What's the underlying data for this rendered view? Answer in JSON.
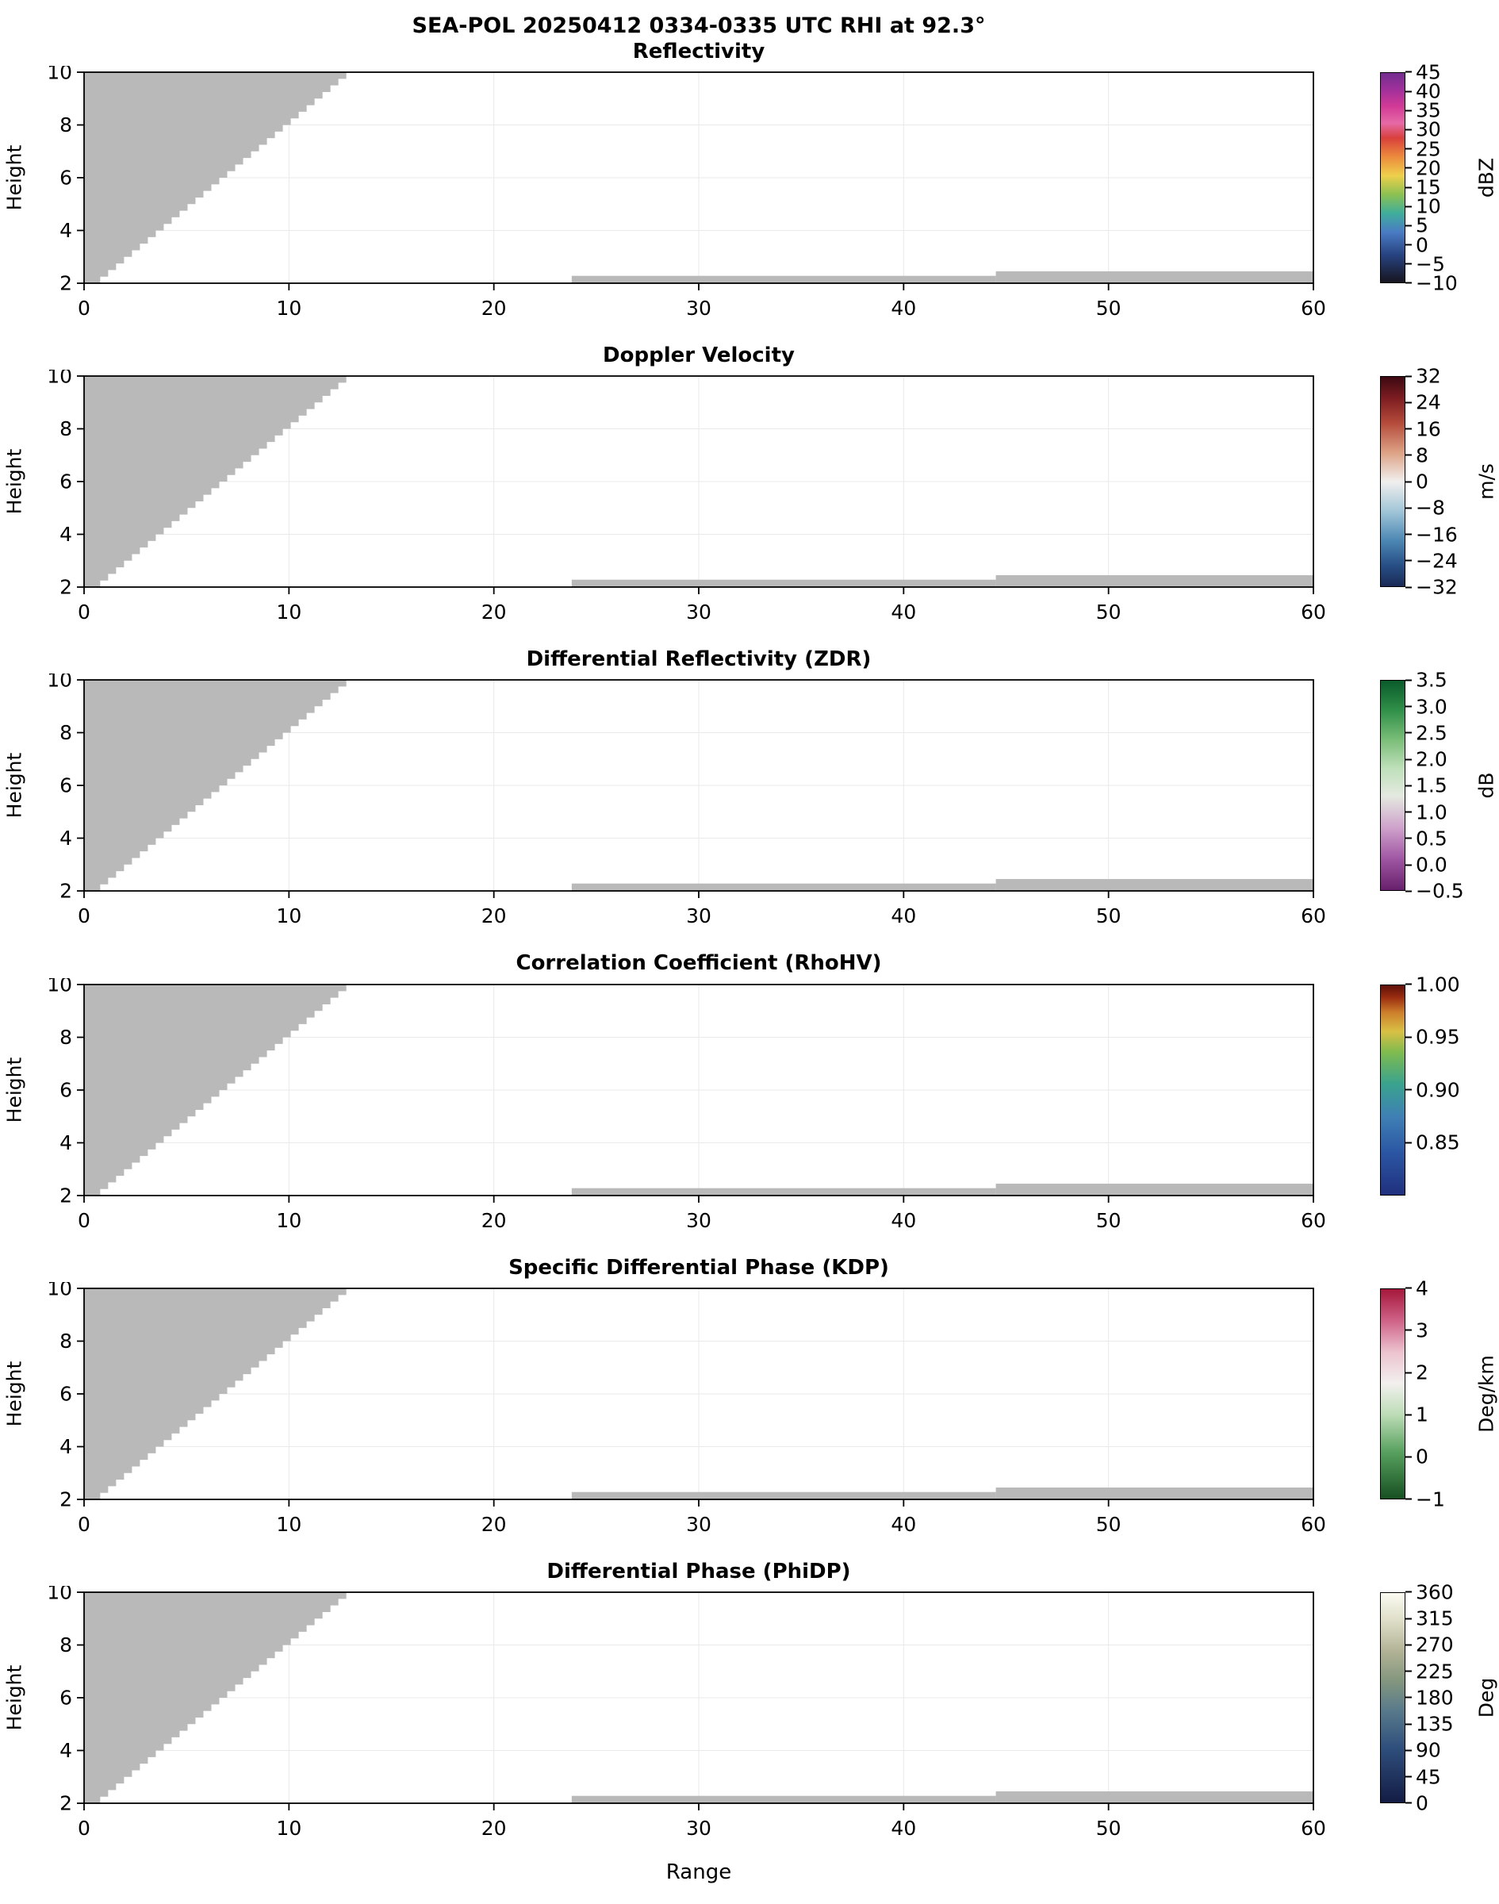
{
  "chart_data": {
    "type": "heatmap",
    "suptitle": "SEA-POL 20250412 0334-0335 UTC RHI at 92.3°",
    "xlabel": "Range",
    "ylabel": "Height",
    "xlim": [
      0,
      60
    ],
    "ylim": [
      2,
      10
    ],
    "xticks": [
      0,
      10,
      20,
      30,
      40,
      50,
      60
    ],
    "yticks": [
      2,
      4,
      6,
      8,
      10
    ],
    "grid": true,
    "nodata_color": "#b9b9b9",
    "blocked_wedge": {
      "x_top": 12.8,
      "y_top": 10,
      "x_bottom": 0.4,
      "y_bottom": 2,
      "step": 0.25
    },
    "ground_strips": [
      {
        "x0": 23.8,
        "x1": 44.5,
        "y0": 2.0,
        "y1": 2.28
      },
      {
        "x0": 44.5,
        "x1": 60.0,
        "y0": 2.0,
        "y1": 2.45
      }
    ],
    "panels": [
      {
        "id": "reflectivity",
        "title": "Reflectivity",
        "cbar_unit": "dBZ",
        "cbar_min": -10,
        "cbar_max": 45,
        "cbar_ticks": [
          {
            "v": 45,
            "label": "45"
          },
          {
            "v": 40,
            "label": "40"
          },
          {
            "v": 35,
            "label": "35"
          },
          {
            "v": 30,
            "label": "30"
          },
          {
            "v": 25,
            "label": "25"
          },
          {
            "v": 20,
            "label": "20"
          },
          {
            "v": 15,
            "label": "15"
          },
          {
            "v": 10,
            "label": "10"
          },
          {
            "v": 5,
            "label": "5"
          },
          {
            "v": 0,
            "label": "0"
          },
          {
            "v": -5,
            "label": "−5"
          },
          {
            "v": -10,
            "label": "−10"
          }
        ],
        "cbar_gradient": [
          [
            0.0,
            "#722d8e"
          ],
          [
            0.08,
            "#a1309b"
          ],
          [
            0.16,
            "#d23a96"
          ],
          [
            0.24,
            "#e66aa6"
          ],
          [
            0.31,
            "#d8403c"
          ],
          [
            0.4,
            "#ec8b3d"
          ],
          [
            0.49,
            "#eed04b"
          ],
          [
            0.58,
            "#8cc152"
          ],
          [
            0.67,
            "#3fae9b"
          ],
          [
            0.76,
            "#4a7bc4"
          ],
          [
            0.87,
            "#27427f"
          ],
          [
            1.0,
            "#17151f"
          ]
        ]
      },
      {
        "id": "velocity",
        "title": "Doppler Velocity",
        "cbar_unit": "m/s",
        "cbar_min": -32,
        "cbar_max": 32,
        "cbar_ticks": [
          {
            "v": 32,
            "label": "32"
          },
          {
            "v": 24,
            "label": "24"
          },
          {
            "v": 16,
            "label": "16"
          },
          {
            "v": 8,
            "label": "8"
          },
          {
            "v": 0,
            "label": "0"
          },
          {
            "v": -8,
            "label": "−8"
          },
          {
            "v": -16,
            "label": "−16"
          },
          {
            "v": -24,
            "label": "−24"
          },
          {
            "v": -32,
            "label": "−32"
          }
        ],
        "cbar_gradient": [
          [
            0.0,
            "#3c0912"
          ],
          [
            0.1,
            "#7c1c21"
          ],
          [
            0.22,
            "#b44b3a"
          ],
          [
            0.36,
            "#dda184"
          ],
          [
            0.5,
            "#f1efee"
          ],
          [
            0.64,
            "#a2c6d8"
          ],
          [
            0.78,
            "#4d88b4"
          ],
          [
            0.9,
            "#274f86"
          ],
          [
            1.0,
            "#1b2a55"
          ]
        ]
      },
      {
        "id": "zdr",
        "title": "Differential Reflectivity (ZDR)",
        "cbar_unit": "dB",
        "cbar_min": -0.5,
        "cbar_max": 3.5,
        "cbar_ticks": [
          {
            "v": 3.5,
            "label": "3.5"
          },
          {
            "v": 3.0,
            "label": "3.0"
          },
          {
            "v": 2.5,
            "label": "2.5"
          },
          {
            "v": 2.0,
            "label": "2.0"
          },
          {
            "v": 1.5,
            "label": "1.5"
          },
          {
            "v": 1.0,
            "label": "1.0"
          },
          {
            "v": 0.5,
            "label": "0.5"
          },
          {
            "v": 0.0,
            "label": "0.0"
          },
          {
            "v": -0.5,
            "label": "−0.5"
          }
        ],
        "cbar_gradient": [
          [
            0.0,
            "#0b5b2b"
          ],
          [
            0.14,
            "#2f8f48"
          ],
          [
            0.28,
            "#79bd77"
          ],
          [
            0.42,
            "#bfe0bb"
          ],
          [
            0.55,
            "#e4e9e0"
          ],
          [
            0.7,
            "#cfa3cc"
          ],
          [
            0.85,
            "#a057a3"
          ],
          [
            1.0,
            "#67206b"
          ]
        ]
      },
      {
        "id": "rhohv",
        "title": "Correlation Coefficient (RhoHV)",
        "cbar_unit": "",
        "cbar_min": 0.8,
        "cbar_max": 1.0,
        "cbar_ticks": [
          {
            "v": 1.0,
            "label": "1.00"
          },
          {
            "v": 0.95,
            "label": "0.95"
          },
          {
            "v": 0.9,
            "label": "0.90"
          },
          {
            "v": 0.85,
            "label": "0.85"
          }
        ],
        "cbar_gradient": [
          [
            0.0,
            "#5e0f0a"
          ],
          [
            0.06,
            "#9c2f10"
          ],
          [
            0.13,
            "#cd7f2c"
          ],
          [
            0.22,
            "#d9c044"
          ],
          [
            0.32,
            "#7fbb4f"
          ],
          [
            0.47,
            "#3aa38e"
          ],
          [
            0.63,
            "#3f7fb5"
          ],
          [
            0.8,
            "#2b56a3"
          ],
          [
            1.0,
            "#20307e"
          ]
        ]
      },
      {
        "id": "kdp",
        "title": "Specific Differential Phase (KDP)",
        "cbar_unit": "Deg/km",
        "cbar_min": -1,
        "cbar_max": 4,
        "cbar_ticks": [
          {
            "v": 4,
            "label": "4"
          },
          {
            "v": 3,
            "label": "3"
          },
          {
            "v": 2,
            "label": "2"
          },
          {
            "v": 1,
            "label": "1"
          },
          {
            "v": 0,
            "label": "0"
          },
          {
            "v": -1,
            "label": "−1"
          }
        ],
        "cbar_gradient": [
          [
            0.0,
            "#a5173b"
          ],
          [
            0.15,
            "#cf6287"
          ],
          [
            0.3,
            "#ecc3cf"
          ],
          [
            0.45,
            "#f2f0ee"
          ],
          [
            0.6,
            "#bcdcb6"
          ],
          [
            0.78,
            "#57a05e"
          ],
          [
            1.0,
            "#175022"
          ]
        ]
      },
      {
        "id": "phidp",
        "title": "Differential Phase (PhiDP)",
        "cbar_unit": "Deg",
        "cbar_min": 0,
        "cbar_max": 360,
        "cbar_ticks": [
          {
            "v": 360,
            "label": "360"
          },
          {
            "v": 315,
            "label": "315"
          },
          {
            "v": 270,
            "label": "270"
          },
          {
            "v": 225,
            "label": "225"
          },
          {
            "v": 180,
            "label": "180"
          },
          {
            "v": 135,
            "label": "135"
          },
          {
            "v": 90,
            "label": "90"
          },
          {
            "v": 45,
            "label": "45"
          },
          {
            "v": 0,
            "label": "0"
          }
        ],
        "cbar_gradient": [
          [
            0.0,
            "#fbfbf2"
          ],
          [
            0.14,
            "#dcdcc6"
          ],
          [
            0.28,
            "#b1b295"
          ],
          [
            0.42,
            "#83967e"
          ],
          [
            0.56,
            "#597a8b"
          ],
          [
            0.74,
            "#2f4f7c"
          ],
          [
            1.0,
            "#131c44"
          ]
        ]
      }
    ]
  }
}
